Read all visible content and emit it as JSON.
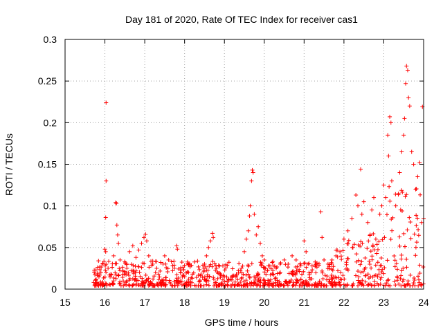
{
  "chart_data": {
    "type": "scatter",
    "title": "Day 181 of 2020, Rate Of TEC Index for receiver cas1",
    "xlabel": "GPS time / hours",
    "ylabel": "ROTI / TECUs",
    "xlim": [
      15,
      24
    ],
    "ylim": [
      0,
      0.3
    ],
    "xticks": [
      15,
      16,
      17,
      18,
      19,
      20,
      21,
      22,
      23,
      24
    ],
    "yticks": [
      0,
      0.05,
      0.1,
      0.15,
      0.2,
      0.25,
      0.3
    ],
    "xtick_labels": [
      "15",
      "16",
      "17",
      "18",
      "19",
      "20",
      "21",
      "22",
      "23",
      "24"
    ],
    "ytick_labels": [
      "0",
      "0.05",
      "0.1",
      "0.15",
      "0.2",
      "0.25",
      "0.3"
    ],
    "grid": true,
    "marker": "plus",
    "marker_color": "#ff0000",
    "series": [
      {
        "name": "ROTI",
        "points": [
          [
            15.72,
            0.008
          ],
          [
            15.78,
            0.012
          ],
          [
            15.85,
            0.015
          ],
          [
            15.9,
            0.02
          ],
          [
            15.95,
            0.03
          ],
          [
            16.0,
            0.048
          ],
          [
            16.02,
            0.045
          ],
          [
            16.03,
            0.224
          ],
          [
            16.03,
            0.13
          ],
          [
            16.02,
            0.086
          ],
          [
            16.08,
            0.025
          ],
          [
            16.15,
            0.018
          ],
          [
            16.22,
            0.04
          ],
          [
            16.27,
            0.104
          ],
          [
            16.29,
            0.103
          ],
          [
            16.3,
            0.077
          ],
          [
            16.32,
            0.065
          ],
          [
            16.34,
            0.055
          ],
          [
            16.38,
            0.035
          ],
          [
            16.45,
            0.022
          ],
          [
            16.55,
            0.03
          ],
          [
            16.62,
            0.045
          ],
          [
            16.7,
            0.052
          ],
          [
            16.78,
            0.038
          ],
          [
            16.85,
            0.047
          ],
          [
            16.92,
            0.055
          ],
          [
            16.98,
            0.062
          ],
          [
            17.02,
            0.066
          ],
          [
            17.05,
            0.058
          ],
          [
            17.1,
            0.04
          ],
          [
            17.2,
            0.03
          ],
          [
            17.3,
            0.025
          ],
          [
            17.4,
            0.032
          ],
          [
            17.5,
            0.04
          ],
          [
            17.6,
            0.035
          ],
          [
            17.7,
            0.022
          ],
          [
            17.8,
            0.052
          ],
          [
            17.82,
            0.048
          ],
          [
            17.9,
            0.02
          ],
          [
            18.0,
            0.015
          ],
          [
            18.1,
            0.012
          ],
          [
            18.2,
            0.018
          ],
          [
            18.3,
            0.014
          ],
          [
            18.4,
            0.016
          ],
          [
            18.5,
            0.03
          ],
          [
            18.55,
            0.04
          ],
          [
            18.6,
            0.05
          ],
          [
            18.65,
            0.058
          ],
          [
            18.7,
            0.067
          ],
          [
            18.72,
            0.062
          ],
          [
            18.8,
            0.025
          ],
          [
            18.9,
            0.018
          ],
          [
            19.0,
            0.015
          ],
          [
            19.1,
            0.012
          ],
          [
            19.2,
            0.016
          ],
          [
            19.3,
            0.018
          ],
          [
            19.4,
            0.022
          ],
          [
            19.5,
            0.045
          ],
          [
            19.55,
            0.06
          ],
          [
            19.6,
            0.07
          ],
          [
            19.63,
            0.088
          ],
          [
            19.65,
            0.1
          ],
          [
            19.68,
            0.13
          ],
          [
            19.7,
            0.143
          ],
          [
            19.72,
            0.14
          ],
          [
            19.75,
            0.09
          ],
          [
            19.8,
            0.065
          ],
          [
            19.85,
            0.075
          ],
          [
            19.9,
            0.055
          ],
          [
            19.95,
            0.04
          ],
          [
            20.0,
            0.035
          ],
          [
            20.1,
            0.028
          ],
          [
            20.2,
            0.032
          ],
          [
            20.3,
            0.025
          ],
          [
            20.4,
            0.03
          ],
          [
            20.5,
            0.035
          ],
          [
            20.6,
            0.03
          ],
          [
            20.7,
            0.04
          ],
          [
            20.8,
            0.035
          ],
          [
            20.9,
            0.03
          ],
          [
            21.0,
            0.058
          ],
          [
            21.05,
            0.045
          ],
          [
            21.1,
            0.03
          ],
          [
            21.2,
            0.028
          ],
          [
            21.3,
            0.03
          ],
          [
            21.42,
            0.093
          ],
          [
            21.45,
            0.062
          ],
          [
            21.5,
            0.035
          ],
          [
            21.6,
            0.03
          ],
          [
            21.7,
            0.035
          ],
          [
            21.8,
            0.04
          ],
          [
            21.9,
            0.045
          ],
          [
            22.0,
            0.06
          ],
          [
            22.1,
            0.07
          ],
          [
            22.2,
            0.085
          ],
          [
            22.3,
            0.113
          ],
          [
            22.35,
            0.1
          ],
          [
            22.42,
            0.144
          ],
          [
            22.45,
            0.09
          ],
          [
            22.5,
            0.105
          ],
          [
            22.6,
            0.08
          ],
          [
            22.7,
            0.095
          ],
          [
            22.75,
            0.11
          ],
          [
            22.8,
            0.06
          ],
          [
            22.9,
            0.09
          ],
          [
            22.95,
            0.1
          ],
          [
            23.0,
            0.125
          ],
          [
            23.05,
            0.11
          ],
          [
            23.1,
            0.185
          ],
          [
            23.12,
            0.16
          ],
          [
            23.15,
            0.207
          ],
          [
            23.18,
            0.2
          ],
          [
            23.2,
            0.13
          ],
          [
            23.3,
            0.1
          ],
          [
            23.4,
            0.14
          ],
          [
            23.45,
            0.165
          ],
          [
            23.5,
            0.185
          ],
          [
            23.52,
            0.205
          ],
          [
            23.55,
            0.247
          ],
          [
            23.57,
            0.268
          ],
          [
            23.6,
            0.263
          ],
          [
            23.62,
            0.23
          ],
          [
            23.65,
            0.22
          ],
          [
            23.7,
            0.165
          ],
          [
            23.75,
            0.15
          ],
          [
            23.8,
            0.12
          ],
          [
            23.85,
            0.135
          ],
          [
            23.9,
            0.152
          ],
          [
            23.95,
            0.08
          ],
          [
            23.97,
            0.219
          ]
        ]
      }
    ]
  }
}
